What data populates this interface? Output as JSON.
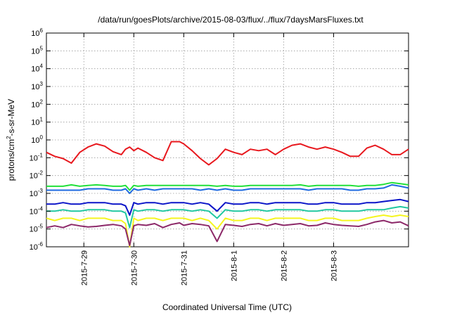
{
  "chart_data": {
    "type": "line",
    "title": "/data/run/goesPlots/archive/2015-08-03/flux/../flux/7daysMarsFluxes.txt",
    "xlabel": "Coordinated Universal Time (UTC)",
    "ylabel_parts": {
      "pre": "protons/cm",
      "sup": "2",
      "post": "-s-sr-MeV"
    },
    "xlim": [
      "2015-07-28 06:00",
      "2015-08-04 12:00"
    ],
    "ylim": [
      1e-06,
      1000000.0
    ],
    "yscale": "log",
    "grid": true,
    "x_ticks": [
      "2015-7-29",
      "2015-7-30",
      "2015-7-31",
      "2015-8-1",
      "2015-8-2",
      "2015-8-3"
    ],
    "y_ticks": [
      {
        "base": "10",
        "exp": "6"
      },
      {
        "base": "10",
        "exp": "5"
      },
      {
        "base": "10",
        "exp": "4"
      },
      {
        "base": "10",
        "exp": "3"
      },
      {
        "base": "10",
        "exp": "2"
      },
      {
        "base": "10",
        "exp": "1"
      },
      {
        "base": "10",
        "exp": "0"
      },
      {
        "base": "10",
        "exp": "-1"
      },
      {
        "base": "10",
        "exp": "-2"
      },
      {
        "base": "10",
        "exp": "-3"
      },
      {
        "base": "10",
        "exp": "-4"
      },
      {
        "base": "10",
        "exp": "-5"
      },
      {
        "base": "10",
        "exp": "-6"
      }
    ],
    "x": [
      "2015-07-28 06:00",
      "2015-07-28 10:00",
      "2015-07-28 14:00",
      "2015-07-28 18:00",
      "2015-07-28 22:00",
      "2015-07-29 02:00",
      "2015-07-29 06:00",
      "2015-07-29 10:00",
      "2015-07-29 14:00",
      "2015-07-29 18:00",
      "2015-07-29 20:00",
      "2015-07-29 22:00",
      "2015-07-30 00:00",
      "2015-07-30 02:00",
      "2015-07-30 06:00",
      "2015-07-30 10:00",
      "2015-07-30 14:00",
      "2015-07-30 18:00",
      "2015-07-30 22:00",
      "2015-07-31 00:00",
      "2015-07-31 04:00",
      "2015-07-31 08:00",
      "2015-07-31 12:00",
      "2015-07-31 16:00",
      "2015-07-31 20:00",
      "2015-08-01 00:00",
      "2015-08-01 04:00",
      "2015-08-01 08:00",
      "2015-08-01 12:00",
      "2015-08-01 16:00",
      "2015-08-01 20:00",
      "2015-08-02 00:00",
      "2015-08-02 04:00",
      "2015-08-02 08:00",
      "2015-08-02 12:00",
      "2015-08-02 16:00",
      "2015-08-02 20:00",
      "2015-08-03 00:00",
      "2015-08-03 04:00",
      "2015-08-03 08:00",
      "2015-08-03 12:00",
      "2015-08-03 16:00",
      "2015-08-03 20:00",
      "2015-08-04 00:00",
      "2015-08-04 04:00",
      "2015-08-04 08:00",
      "2015-08-04 12:00"
    ],
    "series": [
      {
        "color": "#e8181e",
        "values": [
          0.2,
          0.12,
          0.09,
          0.05,
          0.2,
          0.4,
          0.6,
          0.45,
          0.22,
          0.15,
          0.3,
          0.4,
          0.25,
          0.35,
          0.2,
          0.1,
          0.07,
          0.8,
          0.8,
          0.6,
          0.25,
          0.09,
          0.04,
          0.09,
          0.3,
          0.2,
          0.15,
          0.3,
          0.25,
          0.3,
          0.15,
          0.3,
          0.5,
          0.6,
          0.4,
          0.3,
          0.4,
          0.3,
          0.2,
          0.12,
          0.12,
          0.35,
          0.5,
          0.3,
          0.15,
          0.15,
          0.3
        ]
      },
      {
        "color": "#22e03a",
        "values": [
          0.0025,
          0.0025,
          0.0025,
          0.003,
          0.0025,
          0.0028,
          0.003,
          0.0028,
          0.0025,
          0.0025,
          0.0028,
          0.0015,
          0.0028,
          0.0025,
          0.0028,
          0.0028,
          0.0028,
          0.0028,
          0.0028,
          0.0028,
          0.0028,
          0.0028,
          0.0028,
          0.0025,
          0.0028,
          0.0025,
          0.0025,
          0.0028,
          0.0028,
          0.0028,
          0.0028,
          0.0028,
          0.0028,
          0.003,
          0.0025,
          0.0028,
          0.0028,
          0.0028,
          0.0028,
          0.0028,
          0.0025,
          0.0028,
          0.0028,
          0.0032,
          0.004,
          0.0035,
          0.003
        ]
      },
      {
        "color": "#1e6ae0",
        "values": [
          0.0015,
          0.0015,
          0.0015,
          0.0015,
          0.0015,
          0.0018,
          0.0018,
          0.0018,
          0.0015,
          0.0015,
          0.0018,
          0.001,
          0.0018,
          0.0015,
          0.0018,
          0.0015,
          0.0018,
          0.0018,
          0.0018,
          0.0018,
          0.0018,
          0.0015,
          0.0018,
          0.0015,
          0.0018,
          0.0015,
          0.0015,
          0.0018,
          0.0018,
          0.0018,
          0.0018,
          0.0018,
          0.0018,
          0.0018,
          0.0015,
          0.0018,
          0.0018,
          0.0018,
          0.0018,
          0.0015,
          0.0015,
          0.0018,
          0.0018,
          0.002,
          0.003,
          0.0025,
          0.002
        ]
      },
      {
        "color": "#0a14c8",
        "values": [
          0.00025,
          0.00025,
          0.0003,
          0.00025,
          0.00025,
          0.0003,
          0.0003,
          0.0003,
          0.00025,
          0.00025,
          0.0002,
          6e-05,
          0.0003,
          0.00025,
          0.0003,
          0.0003,
          0.00025,
          0.0003,
          0.0003,
          0.0003,
          0.00025,
          0.0003,
          0.00025,
          0.0001,
          0.0003,
          0.00025,
          0.00025,
          0.0003,
          0.0003,
          0.00025,
          0.0003,
          0.0003,
          0.0003,
          0.0003,
          0.00025,
          0.00025,
          0.0003,
          0.0003,
          0.00025,
          0.00025,
          0.00025,
          0.0003,
          0.0003,
          0.00035,
          0.0004,
          0.00045,
          0.00035
        ]
      },
      {
        "color": "#20c8a0",
        "values": [
          0.0001,
          0.0001,
          0.00012,
          0.0001,
          0.0001,
          0.00012,
          0.00012,
          0.00012,
          0.0001,
          0.0001,
          8e-05,
          1.2e-05,
          0.00012,
          0.0001,
          0.00012,
          0.00012,
          0.0001,
          0.00012,
          0.00012,
          0.00012,
          0.0001,
          0.00012,
          0.0001,
          4e-05,
          0.00012,
          0.0001,
          0.0001,
          0.00012,
          0.00012,
          0.0001,
          0.00012,
          0.00012,
          0.00012,
          0.00012,
          0.0001,
          0.0001,
          0.00012,
          0.00012,
          0.0001,
          0.0001,
          0.0001,
          0.00012,
          0.00012,
          0.00012,
          0.00015,
          0.00018,
          0.00015
        ]
      },
      {
        "color": "#f5f520",
        "values": [
          4e-05,
          3e-05,
          4e-05,
          4e-05,
          3e-05,
          4e-05,
          4e-05,
          4e-05,
          3e-05,
          3e-05,
          2e-05,
          1e-06,
          4e-05,
          3e-05,
          4e-05,
          4e-05,
          3e-05,
          4e-05,
          4e-05,
          4e-05,
          3e-05,
          4e-05,
          3e-05,
          1e-05,
          4e-05,
          3e-05,
          3e-05,
          4e-05,
          4e-05,
          3e-05,
          4e-05,
          4e-05,
          4e-05,
          4e-05,
          3e-05,
          3e-05,
          4e-05,
          4e-05,
          3e-05,
          3e-05,
          3e-05,
          4e-05,
          5e-05,
          6e-05,
          5e-05,
          6e-05,
          5e-05
        ]
      },
      {
        "color": "#8c2868",
        "values": [
          1.2e-05,
          1.5e-05,
          1.2e-05,
          1.8e-05,
          1.5e-05,
          1.3e-05,
          1.4e-05,
          1.6e-05,
          1.8e-05,
          1.5e-05,
          1e-05,
          1.2e-06,
          1.5e-05,
          1.8e-05,
          1.6e-05,
          2e-05,
          1.2e-05,
          1.8e-05,
          2.2e-05,
          1.6e-05,
          2e-05,
          1.8e-05,
          1.5e-05,
          2e-06,
          1.8e-05,
          1.6e-05,
          1.4e-05,
          1.8e-05,
          2e-05,
          1.5e-05,
          2e-05,
          1.6e-05,
          1.8e-05,
          2e-05,
          1.5e-05,
          1.6e-05,
          2.2e-05,
          1.8e-05,
          1.6e-05,
          1.5e-05,
          1.4e-05,
          1.8e-05,
          2.5e-05,
          3e-05,
          2.2e-05,
          2.5e-05,
          1.5e-05
        ]
      }
    ]
  }
}
